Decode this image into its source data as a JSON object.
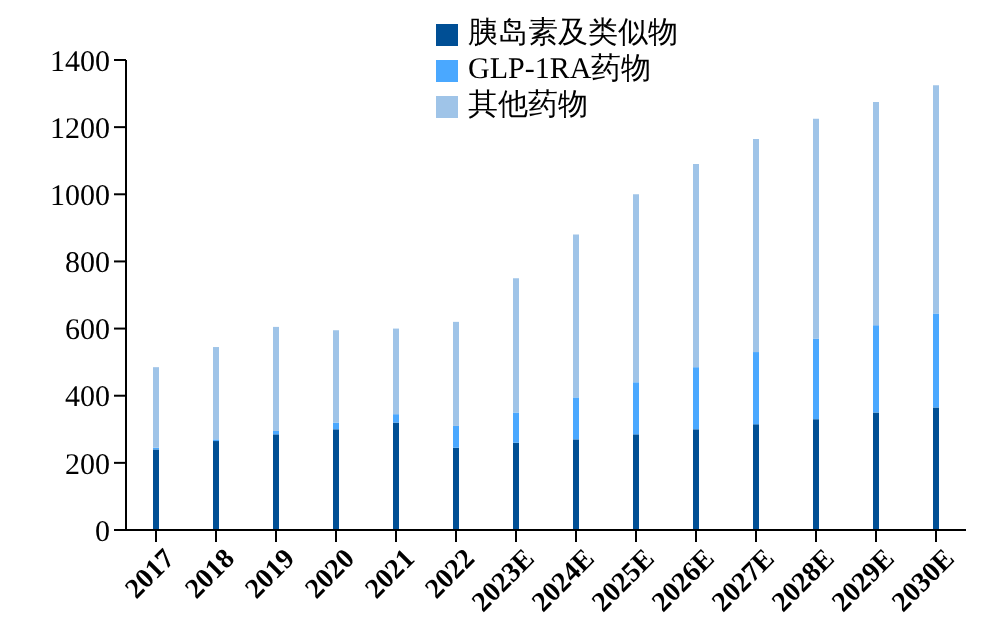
{
  "chart_data": {
    "type": "bar",
    "stacked": true,
    "categories": [
      "2017",
      "2018",
      "2019",
      "2020",
      "2021",
      "2022",
      "2023E",
      "2024E",
      "2025E",
      "2026E",
      "2027E",
      "2028E",
      "2029E",
      "2030E"
    ],
    "series": [
      {
        "name": "胰岛素及类似物",
        "color": "#004f95",
        "values": [
          240,
          265,
          285,
          300,
          320,
          245,
          260,
          270,
          285,
          300,
          315,
          330,
          350,
          365
        ]
      },
      {
        "name": "GLP-1RA药物",
        "color": "#4aa8ff",
        "values": [
          5,
          5,
          10,
          20,
          25,
          65,
          90,
          125,
          155,
          185,
          215,
          240,
          260,
          280
        ]
      },
      {
        "name": "其他药物",
        "color": "#9fc4e8",
        "values": [
          240,
          275,
          310,
          275,
          255,
          310,
          400,
          485,
          560,
          605,
          635,
          655,
          665,
          680
        ]
      }
    ],
    "ylim": [
      0,
      1400
    ],
    "yticks": [
      0,
      200,
      400,
      600,
      800,
      1000,
      1200,
      1400
    ],
    "grid": false,
    "legend": "top"
  }
}
